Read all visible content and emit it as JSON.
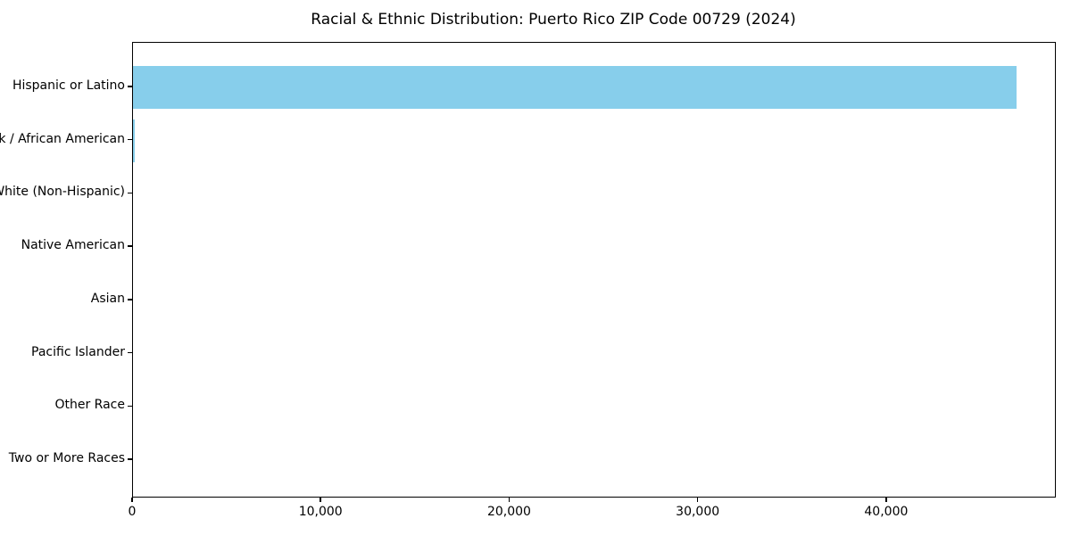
{
  "chart_data": {
    "type": "bar",
    "orientation": "horizontal",
    "title": "Racial & Ethnic Distribution: Puerto Rico ZIP Code 00729 (2024)",
    "categories": [
      "Hispanic or Latino",
      "Black / African American",
      "White (Non-Hispanic)",
      "Native American",
      "Asian",
      "Pacific Islander",
      "Other Race",
      "Two or More Races"
    ],
    "values": [
      46850,
      80,
      0,
      0,
      0,
      0,
      0,
      0
    ],
    "xlabel": "",
    "ylabel": "",
    "xlim": [
      0,
      49000
    ],
    "xticks": [
      0,
      10000,
      20000,
      30000,
      40000
    ],
    "xtick_labels": [
      "0",
      "10,000",
      "20,000",
      "30,000",
      "40,000"
    ],
    "bar_color": "#87CEEB",
    "axis_color": "#000000",
    "background_color": "#ffffff",
    "grid": false,
    "legend": null
  }
}
